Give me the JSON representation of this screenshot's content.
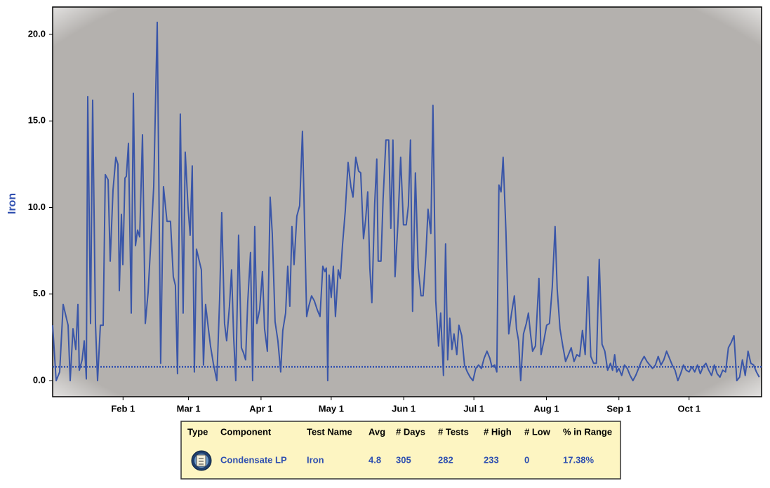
{
  "chart_data": {
    "type": "line",
    "ylabel": "Iron",
    "xlim": [
      0.9,
      304
    ],
    "ylim": [
      -0.93,
      21.58
    ],
    "xticks": [
      {
        "value": 31,
        "label": "Feb 1"
      },
      {
        "value": 59,
        "label": "Mar 1"
      },
      {
        "value": 90,
        "label": "Apr 1"
      },
      {
        "value": 120,
        "label": "May 1"
      },
      {
        "value": 151,
        "label": "Jun 1"
      },
      {
        "value": 181,
        "label": "Jul 1"
      },
      {
        "value": 212,
        "label": "Aug 1"
      },
      {
        "value": 243,
        "label": "Sep 1"
      },
      {
        "value": 273,
        "label": "Oct 1"
      }
    ],
    "yticks": [
      {
        "value": 0,
        "label": "0.0"
      },
      {
        "value": 5,
        "label": "5.0"
      },
      {
        "value": 10,
        "label": "10.0"
      },
      {
        "value": 15,
        "label": "15.0"
      },
      {
        "value": 20,
        "label": "20.0"
      }
    ],
    "reference_line": 0.8,
    "reference_color": "#2f4fb0",
    "grid": false,
    "series": [
      {
        "color": "#3a56a8",
        "x": [
          0.9,
          2.4,
          3.9,
          5.4,
          7.5,
          8.4,
          9.6,
          10.8,
          11.7,
          12.3,
          13.5,
          14.4,
          15.3,
          15.9,
          17.1,
          18,
          19.2,
          20.1,
          21.3,
          22.5,
          23.4,
          24.6,
          25.5,
          26.7,
          27.9,
          28.8,
          29.4,
          30.3,
          30.9,
          31.8,
          32.4,
          33.3,
          34.5,
          35.4,
          36.3,
          37.2,
          38.1,
          39.3,
          40.5,
          41.7,
          42.9,
          44.1,
          45.6,
          47.1,
          48.3,
          49.8,
          51.3,
          52.5,
          53.4,
          54.3,
          55.5,
          56.7,
          57.6,
          58.8,
          59.7,
          60.6,
          61.5,
          62.4,
          63.6,
          64.5,
          65.4,
          66.3,
          67.5,
          68.4,
          69.6,
          71.1,
          72.3,
          73.2,
          74.4,
          75.3,
          76.5,
          77.4,
          78.3,
          79.2,
          80.4,
          81.6,
          82.5,
          83.4,
          84.3,
          85.5,
          86.4,
          87.3,
          88.2,
          89.4,
          90.6,
          91.5,
          92.7,
          93.9,
          94.8,
          96,
          97.2,
          98.4,
          99.3,
          100.5,
          101.4,
          102.3,
          103.2,
          104.1,
          105.3,
          106.5,
          107.7,
          109.5,
          110.4,
          111.6,
          112.8,
          114,
          115.2,
          116.4,
          117.3,
          117.9,
          118.5,
          119.1,
          120,
          120.9,
          121.8,
          123,
          123.9,
          124.8,
          126,
          127.2,
          128.4,
          129.3,
          130.5,
          131.7,
          132.6,
          133.8,
          134.7,
          135.6,
          136.5,
          137.4,
          138.6,
          139.5,
          140.1,
          141.3,
          142.2,
          143.4,
          144.6,
          145.5,
          146.4,
          147.3,
          148.5,
          149.7,
          150.9,
          152.1,
          153,
          153.9,
          154.8,
          156,
          157.2,
          158.4,
          159.3,
          160.5,
          161.4,
          162.6,
          163.5,
          164.7,
          165.9,
          166.8,
          168,
          168.9,
          169.8,
          170.7,
          171.6,
          172.5,
          173.7,
          174.6,
          175.8,
          177,
          178.2,
          179.4,
          180.6,
          181.8,
          183,
          184.2,
          185.4,
          186.6,
          187.8,
          188.7,
          189.9,
          190.8,
          191.7,
          192.6,
          193.5,
          194.7,
          195.9,
          197.1,
          198.3,
          199.2,
          200.1,
          201,
          202.2,
          203.4,
          204.3,
          205.2,
          206.1,
          207.3,
          208.8,
          209.7,
          210.9,
          212.1,
          213.3,
          214.5,
          215.7,
          216.6,
          217.8,
          219,
          220.2,
          221.4,
          222.6,
          223.8,
          225,
          226.2,
          227.4,
          228.6,
          229.8,
          231,
          232.2,
          233.4,
          234.6,
          235.8,
          237,
          238.2,
          239.4,
          240.3,
          241.2,
          242.1,
          243,
          244.2,
          245.4,
          246.6,
          247.8,
          249,
          250.2,
          251.4,
          252.6,
          253.8,
          255,
          256.2,
          257.4,
          258.6,
          259.8,
          261,
          262.2,
          263.4,
          264.6,
          265.8,
          267,
          268.2,
          269.4,
          270.6,
          271.8,
          273,
          274.2,
          275.4,
          276.6,
          277.8,
          279,
          280.2,
          281.4,
          282.6,
          283.8,
          285,
          286.2,
          287.4,
          288.6,
          289.8,
          291,
          292.2,
          293.4,
          294.6,
          295.8,
          297,
          298.2,
          299.4,
          300.6,
          301.8,
          303
        ],
        "values": [
          3.2,
          0,
          0.5,
          4.4,
          3.2,
          0,
          3,
          1.8,
          4.4,
          0.6,
          1.2,
          2.3,
          0.1,
          16.4,
          3.3,
          16.2,
          3.3,
          0,
          3.2,
          3.2,
          11.9,
          11.6,
          6.9,
          11,
          12.9,
          12.5,
          5.2,
          9.6,
          6.7,
          11.7,
          11.8,
          13.7,
          3.9,
          16.6,
          7.8,
          8.7,
          8.3,
          14.2,
          3.3,
          5.1,
          8.1,
          11.2,
          20.7,
          1,
          11.2,
          9.2,
          9.2,
          6,
          5.5,
          0.4,
          15.4,
          3.9,
          13.2,
          10,
          8.4,
          12.4,
          0.5,
          7.6,
          6.9,
          6.4,
          0.9,
          4.4,
          3,
          2,
          1,
          0,
          4.7,
          9.7,
          3.3,
          2.3,
          4.3,
          6.4,
          2.5,
          0,
          8.4,
          1.9,
          1.6,
          1.2,
          4.5,
          7.4,
          0,
          8.9,
          3.3,
          4.1,
          6.3,
          3,
          1.7,
          10.6,
          8.5,
          3.4,
          2.3,
          0.5,
          2.9,
          3.9,
          6.6,
          4.3,
          8.9,
          6.7,
          9.5,
          10.1,
          14.4,
          3.7,
          4.3,
          4.9,
          4.6,
          4.1,
          3.7,
          6.6,
          6.3,
          6.5,
          0,
          6.1,
          4.8,
          6.6,
          3.7,
          6.4,
          5.9,
          7.8,
          9.8,
          12.6,
          11.2,
          10.6,
          12.9,
          12.1,
          12,
          8.2,
          9.3,
          10.9,
          6.5,
          4.5,
          10.2,
          12.8,
          6.9,
          6.9,
          10.5,
          13.9,
          13.9,
          8.8,
          13.9,
          6,
          9,
          12.9,
          9,
          9,
          10.1,
          13.9,
          4,
          12,
          6.5,
          4.9,
          4.9,
          7.3,
          9.9,
          8.5,
          15.9,
          4.6,
          2,
          3.9,
          0.3,
          7.9,
          1.2,
          3.6,
          1.8,
          2.7,
          1.5,
          3.2,
          2.6,
          0.9,
          0.5,
          0.2,
          0,
          0.7,
          0.9,
          0.7,
          1.3,
          1.7,
          1.3,
          0.8,
          0.9,
          0.5,
          11.3,
          10.9,
          12.9,
          8.6,
          2.7,
          3.9,
          4.9,
          3,
          2.3,
          0,
          2.7,
          3.3,
          3.9,
          2.7,
          1.7,
          2,
          5.9,
          1.5,
          2.3,
          3.2,
          3.3,
          5.4,
          8.9,
          5.3,
          3,
          2,
          1.1,
          1.5,
          1.9,
          1.1,
          1.5,
          1.4,
          2.9,
          1.5,
          6,
          1.4,
          1,
          1,
          7,
          2.1,
          1.7,
          0.6,
          1,
          0.6,
          1.5,
          0.5,
          0.7,
          0.3,
          0.9,
          0.7,
          0.3,
          0,
          0.3,
          0.7,
          1.1,
          1.4,
          1.1,
          0.9,
          0.7,
          0.9,
          1.4,
          0.9,
          1.2,
          1.7,
          1.3,
          0.9,
          0.6,
          0,
          0.4,
          0.9,
          0.6,
          0.5,
          0.8,
          0.5,
          0.9,
          0.4,
          0.8,
          1,
          0.6,
          0.3,
          0.9,
          0.4,
          0.2,
          0.6,
          0.5,
          1.9,
          2.2,
          2.6,
          0,
          0.2,
          1.2,
          0.3,
          1.7,
          1,
          0.9,
          0.5,
          0.2
        ]
      }
    ]
  },
  "table": {
    "headers": [
      "Type",
      "Component",
      "Test Name",
      "Avg",
      "# Days",
      "# Tests",
      "# High",
      "# Low",
      "% in Range"
    ],
    "rows": [
      [
        "",
        "Condensate LP",
        "Iron",
        "4.8",
        "305",
        "282",
        "233",
        "0",
        "17.38%"
      ]
    ]
  }
}
